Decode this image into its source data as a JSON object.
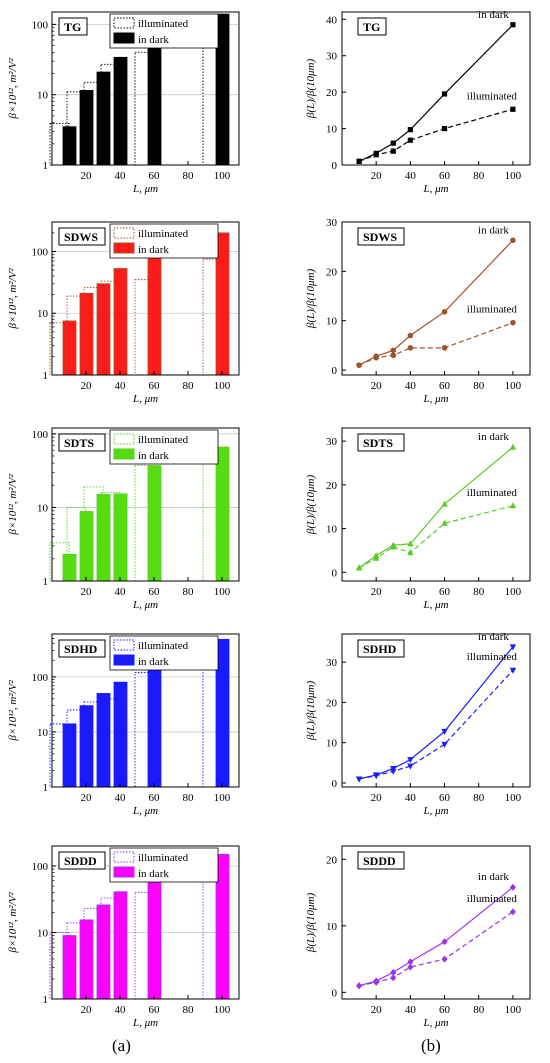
{
  "figure": {
    "captions": [
      "(a)",
      "(b)"
    ]
  },
  "common": {
    "bar_xlabel": "L, μm",
    "bar_ylabel": "β×10¹², m²/V²",
    "ratio_xlabel": "L, μm",
    "ratio_ylabel": "β(L)/β(10μm)",
    "legend_illuminated": "illuminated",
    "legend_dark": "in dark",
    "label_dark": "in dark",
    "label_illuminated": "illuminated",
    "x_ticks": [
      20,
      40,
      60,
      80,
      100
    ],
    "bar_yticks": [
      1,
      10,
      100
    ],
    "x_categories": [
      10,
      20,
      30,
      40,
      60,
      100
    ]
  },
  "chart_data": [
    {
      "type": "bar",
      "panel": "TG",
      "title": "TG",
      "color": "#000000",
      "fill": "#000000",
      "xlabel": "L, μm",
      "ylabel": "β×10¹², m²/V²",
      "xlim": [
        0,
        110
      ],
      "ylim": [
        1,
        150
      ],
      "yscale": "log",
      "categories": [
        10,
        20,
        30,
        40,
        60,
        100
      ],
      "series": [
        {
          "name": "illuminated",
          "values": [
            3.9,
            11,
            15,
            27,
            40,
            60
          ]
        },
        {
          "name": "in dark",
          "values": [
            3.5,
            11.5,
            21,
            34,
            68,
            140
          ]
        }
      ]
    },
    {
      "type": "line",
      "panel": "TG",
      "title": "TG",
      "color": "#000000",
      "marker": "square",
      "xlabel": "L, μm",
      "ylabel": "β(L)/β(10μm)",
      "xlim": [
        0,
        110
      ],
      "ylim": [
        0,
        42
      ],
      "yticks": [
        0,
        10,
        20,
        30,
        40
      ],
      "x": [
        10,
        20,
        30,
        40,
        60,
        100
      ],
      "series": [
        {
          "name": "in dark",
          "values": [
            1,
            3.2,
            6,
            9.7,
            19.5,
            38.5
          ]
        },
        {
          "name": "illuminated",
          "values": [
            1,
            2.8,
            3.8,
            6.8,
            10,
            15.3
          ]
        }
      ]
    },
    {
      "type": "bar",
      "panel": "SDWS",
      "title": "SDWS",
      "color": "#a0522d",
      "fill": "#ff1a1a",
      "xlabel": "L, μm",
      "ylabel": "β×10¹², m²/V²",
      "xlim": [
        0,
        110
      ],
      "ylim": [
        1,
        300
      ],
      "yscale": "log",
      "categories": [
        10,
        20,
        30,
        40,
        60,
        100
      ],
      "series": [
        {
          "name": "illuminated",
          "values": [
            7,
            19,
            26,
            33,
            35,
            75
          ]
        },
        {
          "name": "in dark",
          "values": [
            7.5,
            21,
            30,
            53,
            90,
            200
          ]
        }
      ]
    },
    {
      "type": "line",
      "panel": "SDWS",
      "title": "SDWS",
      "color": "#a0522d",
      "marker": "circle",
      "xlabel": "L, μm",
      "ylabel": "β(L)/β(10μm)",
      "xlim": [
        0,
        110
      ],
      "ylim": [
        -1,
        30
      ],
      "yticks": [
        0,
        10,
        20,
        30
      ],
      "x": [
        10,
        20,
        30,
        40,
        60,
        100
      ],
      "series": [
        {
          "name": "in dark",
          "values": [
            1,
            2.8,
            4,
            7,
            11.8,
            26.3
          ]
        },
        {
          "name": "illuminated",
          "values": [
            1,
            2.5,
            3,
            4.5,
            4.5,
            9.6
          ]
        }
      ]
    },
    {
      "type": "bar",
      "panel": "SDTS",
      "title": "SDTS",
      "color": "#55cc22",
      "fill": "#55dd11",
      "xlabel": "L, μm",
      "ylabel": "β×10¹², m²/V²",
      "xlim": [
        0,
        110
      ],
      "ylim": [
        1,
        120
      ],
      "yscale": "log",
      "categories": [
        10,
        20,
        30,
        40,
        60,
        100
      ],
      "series": [
        {
          "name": "illuminated",
          "values": [
            3.3,
            10,
            19,
            16,
            37,
            48
          ]
        },
        {
          "name": "in dark",
          "values": [
            2.3,
            8.8,
            15,
            15.3,
            37,
            66
          ]
        }
      ]
    },
    {
      "type": "line",
      "panel": "SDTS",
      "title": "SDTS",
      "color": "#55cc22",
      "marker": "triangle-up",
      "xlabel": "L, μm",
      "ylabel": "β(L)/β(10μm)",
      "xlim": [
        0,
        110
      ],
      "ylim": [
        -2,
        33
      ],
      "yticks": [
        0,
        10,
        20,
        30
      ],
      "x": [
        10,
        20,
        30,
        40,
        60,
        100
      ],
      "series": [
        {
          "name": "in dark",
          "values": [
            1,
            3.8,
            6.2,
            6.5,
            15.6,
            28.6
          ]
        },
        {
          "name": "illuminated",
          "values": [
            1,
            3.2,
            5.8,
            4.5,
            11.2,
            15.2
          ]
        }
      ]
    },
    {
      "type": "bar",
      "panel": "SDHD",
      "title": "SDHD",
      "color": "#1a1aff",
      "fill": "#1a1aff",
      "xlabel": "L, μm",
      "ylabel": "β×10¹², m²/V²",
      "xlim": [
        0,
        110
      ],
      "ylim": [
        1,
        600
      ],
      "yscale": "log",
      "categories": [
        10,
        20,
        30,
        40,
        60,
        100
      ],
      "series": [
        {
          "name": "illuminated",
          "values": [
            14,
            25,
            35,
            40,
            120,
            440
          ]
        },
        {
          "name": "in dark",
          "values": [
            14,
            30,
            50,
            80,
            165,
            480
          ]
        }
      ]
    },
    {
      "type": "line",
      "panel": "SDHD",
      "title": "SDHD",
      "color": "#1a1aff",
      "marker": "triangle-down",
      "xlabel": "L, μm",
      "ylabel": "β(L)/β(10μm)",
      "xlim": [
        0,
        110
      ],
      "ylim": [
        -1,
        37
      ],
      "yticks": [
        0,
        10,
        20,
        30
      ],
      "x": [
        10,
        20,
        30,
        40,
        60,
        100
      ],
      "series": [
        {
          "name": "in dark",
          "values": [
            1,
            2,
            3.6,
            5.8,
            12.8,
            33.8
          ]
        },
        {
          "name": "illuminated",
          "values": [
            1,
            1.8,
            2.9,
            4.2,
            9.6,
            28
          ]
        }
      ]
    },
    {
      "type": "bar",
      "panel": "SDDD",
      "title": "SDDD",
      "color": "#9933ee",
      "fill": "#ff00ff",
      "xlabel": "L, μm",
      "ylabel": "β×10¹², m²/V²",
      "xlim": [
        0,
        110
      ],
      "ylim": [
        1,
        200
      ],
      "yscale": "log",
      "categories": [
        10,
        20,
        30,
        40,
        60,
        100
      ],
      "series": [
        {
          "name": "illuminated",
          "values": [
            10,
            14,
            23,
            33,
            40,
            110
          ]
        },
        {
          "name": "in dark",
          "values": [
            9,
            15.5,
            26,
            41,
            70,
            150
          ]
        }
      ]
    },
    {
      "type": "line",
      "panel": "SDDD",
      "title": "SDDD",
      "color": "#9933ee",
      "marker": "diamond",
      "xlabel": "L, μm",
      "ylabel": "β(L)/β(10μm)",
      "xlim": [
        0,
        110
      ],
      "ylim": [
        -1,
        22
      ],
      "yticks": [
        0,
        10,
        20
      ],
      "x": [
        10,
        20,
        30,
        40,
        60,
        100
      ],
      "series": [
        {
          "name": "in dark",
          "values": [
            1,
            1.7,
            3,
            4.6,
            7.6,
            15.8
          ]
        },
        {
          "name": "illuminated",
          "values": [
            1,
            1.5,
            2.2,
            3.8,
            5,
            12.1
          ]
        }
      ]
    }
  ]
}
